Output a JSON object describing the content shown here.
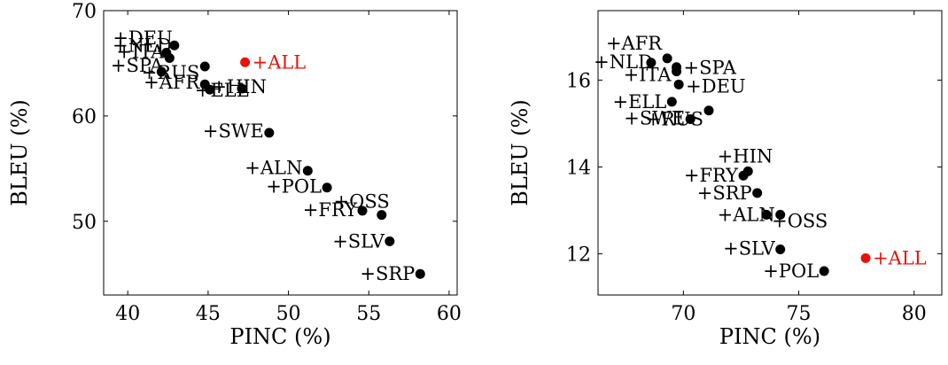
{
  "chart_data": [
    {
      "type": "scatter",
      "xlabel": "PINC (%)",
      "ylabel": "BLEU (%)",
      "xlim": [
        38.5,
        60.5
      ],
      "ylim": [
        43,
        70
      ],
      "xticks": [
        "40",
        "45",
        "50",
        "55",
        "60"
      ],
      "yticks": [
        "50",
        "60",
        "70"
      ],
      "points": [
        {
          "label": "+DEU",
          "x": 42.9,
          "y": 66.7,
          "color": "#000000"
        },
        {
          "label": "+NLD",
          "x": 42.4,
          "y": 66.0,
          "color": "#000000"
        },
        {
          "label": "+ITA",
          "x": 42.6,
          "y": 65.5,
          "color": "#000000"
        },
        {
          "label": "+RUS",
          "x": 44.8,
          "y": 64.7,
          "color": "#000000"
        },
        {
          "label": "+SPA",
          "x": 42.1,
          "y": 64.2,
          "color": "#000000"
        },
        {
          "label": "+AFR",
          "x": 44.8,
          "y": 63.0,
          "color": "#000000"
        },
        {
          "label": "+ELL",
          "x": 45.1,
          "y": 62.5,
          "color": "#000000"
        },
        {
          "label": "+HIN",
          "x": 47.1,
          "y": 62.6,
          "color": "#000000"
        },
        {
          "label": "+SWE",
          "x": 48.8,
          "y": 58.4,
          "color": "#000000"
        },
        {
          "label": "+ALN",
          "x": 51.2,
          "y": 54.8,
          "color": "#000000"
        },
        {
          "label": "+POL",
          "x": 52.4,
          "y": 53.2,
          "color": "#000000"
        },
        {
          "label": "+OSS",
          "x": 55.8,
          "y": 50.6,
          "color": "#000000"
        },
        {
          "label": "+FRY",
          "x": 54.6,
          "y": 51.0,
          "color": "#000000"
        },
        {
          "label": "+SLV",
          "x": 56.3,
          "y": 48.1,
          "color": "#000000"
        },
        {
          "label": "+SRP",
          "x": 58.2,
          "y": 45.0,
          "color": "#000000"
        },
        {
          "label": "+ALL",
          "x": 47.3,
          "y": 65.1,
          "color": "#e8120c"
        }
      ]
    },
    {
      "type": "scatter",
      "xlabel": "PINC (%)",
      "ylabel": "BLEU (%)",
      "xlim": [
        66.3,
        81.2
      ],
      "ylim": [
        11.05,
        17.6
      ],
      "xticks": [
        "70",
        "75",
        "80"
      ],
      "yticks": [
        "12",
        "14",
        "16"
      ],
      "points": [
        {
          "label": "+AFR",
          "x": 69.3,
          "y": 16.5,
          "color": "#000000"
        },
        {
          "label": "+NLD",
          "x": 68.6,
          "y": 16.4,
          "color": "#000000"
        },
        {
          "label": "+SPA",
          "x": 69.7,
          "y": 16.3,
          "color": "#000000"
        },
        {
          "label": "+ITA",
          "x": 69.7,
          "y": 16.2,
          "color": "#000000"
        },
        {
          "label": "+DEU",
          "x": 69.8,
          "y": 15.9,
          "color": "#000000"
        },
        {
          "label": "+ELL",
          "x": 69.5,
          "y": 15.5,
          "color": "#000000"
        },
        {
          "label": "+SWE",
          "x": 70.3,
          "y": 15.1,
          "color": "#000000"
        },
        {
          "label": "+RUS",
          "x": 71.1,
          "y": 15.3,
          "color": "#000000"
        },
        {
          "label": "+HIN",
          "x": 72.8,
          "y": 13.9,
          "color": "#000000"
        },
        {
          "label": "+FRY",
          "x": 72.6,
          "y": 13.8,
          "color": "#000000"
        },
        {
          "label": "+SRP",
          "x": 73.2,
          "y": 13.4,
          "color": "#000000"
        },
        {
          "label": "+OSS",
          "x": 73.6,
          "y": 12.9,
          "color": "#000000"
        },
        {
          "label": "+ALN",
          "x": 74.2,
          "y": 12.9,
          "color": "#000000"
        },
        {
          "label": "+SLV",
          "x": 74.2,
          "y": 12.1,
          "color": "#000000"
        },
        {
          "label": "+POL",
          "x": 76.1,
          "y": 11.6,
          "color": "#000000"
        },
        {
          "label": "+ALL",
          "x": 77.9,
          "y": 11.9,
          "color": "#e8120c"
        }
      ]
    }
  ]
}
